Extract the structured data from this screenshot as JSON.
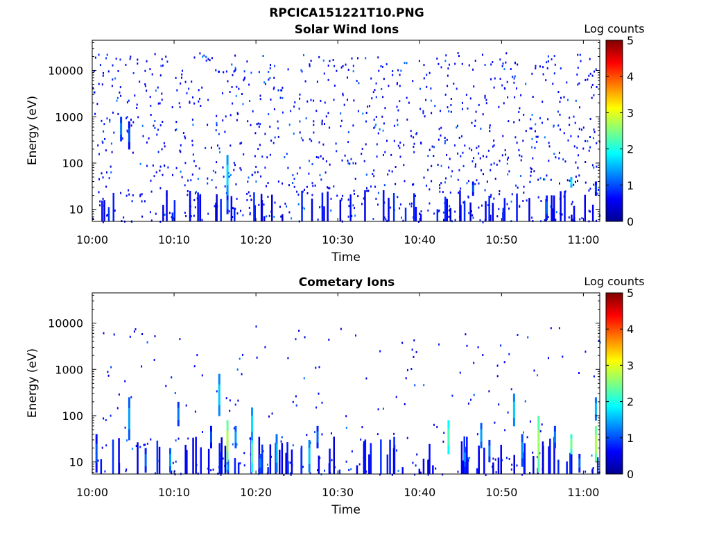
{
  "figure": {
    "title": "RPCICA151221T10.PNG"
  },
  "chart_data": [
    {
      "type": "heatmap",
      "title": "Solar Wind Ions",
      "xlabel": "Time",
      "ylabel": "Energy (eV)",
      "x_ticks": [
        "10:00",
        "10:10",
        "10:20",
        "10:30",
        "10:40",
        "10:50",
        "11:00"
      ],
      "y_ticks": [
        "10",
        "100",
        "1000",
        "10000"
      ],
      "y_scale": "log",
      "x_range": [
        "10:00",
        "11:02"
      ],
      "y_range": [
        5.5,
        45000
      ],
      "colorbar": {
        "label": "Log counts",
        "ticks": [
          "0",
          "1",
          "2",
          "3",
          "4",
          "5"
        ],
        "range": [
          0,
          5
        ],
        "colormap": "jet"
      },
      "summary": "Sparse low counts (log counts ~0-1) scattered across all energies 5-20000 eV over the full hour; slightly elevated (~1.5-2) near 10:03, 10:16 and 10:58 at 20-100 eV",
      "hotspots": [
        {
          "t": "10:03",
          "e_lo": 300,
          "e_hi": 1000,
          "v": 1.4
        },
        {
          "t": "10:04",
          "e_lo": 200,
          "e_hi": 800,
          "v": 1.2
        },
        {
          "t": "10:16",
          "e_lo": 20,
          "e_hi": 150,
          "v": 1.9
        },
        {
          "t": "10:16",
          "e_lo": 8,
          "e_hi": 20,
          "v": 1.3
        },
        {
          "t": "10:46",
          "e_lo": 20,
          "e_hi": 40,
          "v": 1.2
        },
        {
          "t": "10:55",
          "e_lo": 6,
          "e_hi": 20,
          "v": 1.3
        },
        {
          "t": "10:58",
          "e_lo": 30,
          "e_hi": 50,
          "v": 2.0
        },
        {
          "t": "11:01",
          "e_lo": 20,
          "e_hi": 40,
          "v": 1.1
        }
      ]
    },
    {
      "type": "heatmap",
      "title": "Cometary Ions",
      "xlabel": "Time",
      "ylabel": "Energy (eV)",
      "x_ticks": [
        "10:00",
        "10:10",
        "10:20",
        "10:30",
        "10:40",
        "10:50",
        "11:00"
      ],
      "y_ticks": [
        "10",
        "100",
        "1000",
        "10000"
      ],
      "y_scale": "log",
      "x_range": [
        "10:00",
        "11:02"
      ],
      "y_range": [
        5.5,
        45000
      ],
      "colorbar": {
        "label": "Log counts",
        "ticks": [
          "0",
          "1",
          "2",
          "3",
          "4",
          "5"
        ],
        "range": [
          0,
          5
        ],
        "colormap": "jet"
      },
      "summary": "Bursty vertical streaks of cometary ions concentrated below ~500 eV; strongest (log counts ~2.5-3) near 10:16, 10:19, 10:54 and 11:01 at 10-60 eV; sparse isolated pixels up to ~8000 eV",
      "hotspots": [
        {
          "t": "10:00",
          "e_lo": 6,
          "e_hi": 40,
          "v": 1.2
        },
        {
          "t": "10:04",
          "e_lo": 30,
          "e_hi": 250,
          "v": 1.6
        },
        {
          "t": "10:06",
          "e_lo": 6,
          "e_hi": 20,
          "v": 1.3
        },
        {
          "t": "10:09",
          "e_lo": 6,
          "e_hi": 20,
          "v": 1.6
        },
        {
          "t": "10:10",
          "e_lo": 60,
          "e_hi": 200,
          "v": 1.4
        },
        {
          "t": "10:14",
          "e_lo": 20,
          "e_hi": 60,
          "v": 1.2
        },
        {
          "t": "10:15",
          "e_lo": 100,
          "e_hi": 800,
          "v": 1.8
        },
        {
          "t": "10:16",
          "e_lo": 10,
          "e_hi": 80,
          "v": 2.9
        },
        {
          "t": "10:16",
          "e_lo": 6,
          "e_hi": 10,
          "v": 1.8
        },
        {
          "t": "10:17",
          "e_lo": 20,
          "e_hi": 60,
          "v": 1.6
        },
        {
          "t": "10:19",
          "e_lo": 6,
          "e_hi": 40,
          "v": 2.5
        },
        {
          "t": "10:19",
          "e_lo": 30,
          "e_hi": 150,
          "v": 1.9
        },
        {
          "t": "10:20",
          "e_lo": 6,
          "e_hi": 15,
          "v": 1.5
        },
        {
          "t": "10:22",
          "e_lo": 6,
          "e_hi": 40,
          "v": 1.7
        },
        {
          "t": "10:26",
          "e_lo": 6,
          "e_hi": 30,
          "v": 1.8
        },
        {
          "t": "10:27",
          "e_lo": 20,
          "e_hi": 60,
          "v": 1.3
        },
        {
          "t": "10:43",
          "e_lo": 15,
          "e_hi": 80,
          "v": 2.4
        },
        {
          "t": "10:45",
          "e_lo": 8,
          "e_hi": 20,
          "v": 1.5
        },
        {
          "t": "10:47",
          "e_lo": 20,
          "e_hi": 70,
          "v": 1.6
        },
        {
          "t": "10:48",
          "e_lo": 10,
          "e_hi": 30,
          "v": 1.4
        },
        {
          "t": "10:51",
          "e_lo": 60,
          "e_hi": 300,
          "v": 1.8
        },
        {
          "t": "10:52",
          "e_lo": 8,
          "e_hi": 40,
          "v": 1.5
        },
        {
          "t": "10:54",
          "e_lo": 6,
          "e_hi": 100,
          "v": 2.8
        },
        {
          "t": "10:56",
          "e_lo": 20,
          "e_hi": 60,
          "v": 1.4
        },
        {
          "t": "10:58",
          "e_lo": 15,
          "e_hi": 40,
          "v": 2.6
        },
        {
          "t": "10:59",
          "e_lo": 6,
          "e_hi": 15,
          "v": 1.3
        },
        {
          "t": "11:01",
          "e_lo": 10,
          "e_hi": 60,
          "v": 2.9
        },
        {
          "t": "11:01",
          "e_lo": 80,
          "e_hi": 250,
          "v": 1.7
        }
      ]
    }
  ]
}
